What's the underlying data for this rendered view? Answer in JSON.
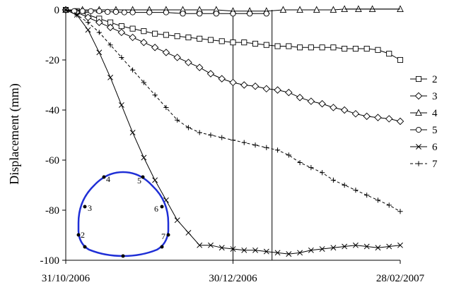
{
  "chart_data": {
    "type": "line",
    "ylabel": "Displacement (mm)",
    "xlabel": "",
    "ylim": [
      -100,
      0
    ],
    "yticks": [
      0,
      -20,
      -40,
      -60,
      -80,
      -100
    ],
    "x_range_days": [
      0,
      120
    ],
    "x_unit": "days since 31/10/2006",
    "xtick_labels": [
      "31/10/2006",
      "30/12/2006",
      "28/02/2007"
    ],
    "grid": false,
    "legend_position": "right",
    "markers": {
      "2": "square",
      "3": "diamond",
      "4": "triangle",
      "5": "circle",
      "6": "x",
      "7": "plus"
    },
    "vertical_lines_days": [
      60,
      74
    ],
    "series": [
      {
        "name": "2",
        "x": [
          0,
          4,
          8,
          12,
          16,
          20,
          24,
          28,
          32,
          36,
          40,
          44,
          48,
          52,
          56,
          60,
          64,
          68,
          72,
          76,
          80,
          84,
          88,
          92,
          96,
          100,
          104,
          108,
          112,
          116,
          120
        ],
        "y": [
          0,
          -0.5,
          -2,
          -3.5,
          -5,
          -6.5,
          -7.5,
          -8.5,
          -9.5,
          -10,
          -10.5,
          -11,
          -11.5,
          -12,
          -12.5,
          -13,
          -13,
          -13.5,
          -14,
          -14.5,
          -14.5,
          -15,
          -15,
          -15,
          -15,
          -15.5,
          -15.5,
          -15.5,
          -16,
          -17.5,
          -20
        ]
      },
      {
        "name": "3",
        "x": [
          0,
          4,
          8,
          12,
          16,
          20,
          24,
          28,
          32,
          36,
          40,
          44,
          48,
          52,
          56,
          60,
          64,
          68,
          72,
          76,
          80,
          84,
          88,
          92,
          96,
          100,
          104,
          108,
          112,
          116,
          120
        ],
        "y": [
          0,
          -1,
          -3,
          -5,
          -7,
          -9,
          -11,
          -13,
          -15,
          -17,
          -19,
          -21,
          -23,
          -25.5,
          -27.5,
          -29,
          -30,
          -30.5,
          -31.5,
          -32,
          -33,
          -35,
          -36.5,
          -37.5,
          -39,
          -40,
          -41.5,
          -42.5,
          -43,
          -43.5,
          -44.5
        ]
      },
      {
        "name": "4",
        "x": [
          0,
          6,
          12,
          18,
          24,
          30,
          36,
          42,
          48,
          54,
          60,
          66,
          72,
          78,
          84,
          90,
          96,
          100,
          105,
          110,
          120
        ],
        "y": [
          0,
          0,
          0,
          0,
          0,
          0,
          0,
          0,
          0,
          0,
          -0.5,
          -0.5,
          -0.5,
          0,
          0,
          0,
          0,
          0.3,
          0.3,
          0.3,
          0.3
        ]
      },
      {
        "name": "5",
        "x": [
          0,
          3,
          6,
          9,
          12,
          15,
          18,
          21,
          24,
          30,
          36,
          42,
          48,
          54,
          60,
          66,
          72
        ],
        "y": [
          0,
          -0.5,
          -0.5,
          -0.5,
          -0.5,
          -0.8,
          -0.8,
          -1,
          -1,
          -1,
          -1,
          -1.5,
          -1.5,
          -1.5,
          -1.5,
          -1.5,
          -1.5
        ]
      },
      {
        "name": "6",
        "x": [
          0,
          4,
          8,
          12,
          16,
          20,
          24,
          28,
          32,
          36,
          40,
          44,
          48,
          52,
          56,
          60,
          64,
          68,
          72,
          76,
          80,
          84,
          88,
          92,
          96,
          100,
          104,
          108,
          112,
          116,
          120
        ],
        "y": [
          0,
          -2,
          -8,
          -17,
          -27,
          -38,
          -49,
          -59,
          -68,
          -76,
          -84,
          -89,
          -94,
          -94,
          -95,
          -95.5,
          -96,
          -96,
          -96.5,
          -97,
          -97.5,
          -97,
          -96,
          -95.5,
          -95,
          -94.5,
          -94,
          -94.5,
          -95,
          -94.5,
          -94
        ]
      },
      {
        "name": "7",
        "x": [
          0,
          4,
          8,
          12,
          16,
          20,
          24,
          28,
          32,
          36,
          40,
          44,
          48,
          52,
          56,
          60,
          64,
          68,
          72,
          76,
          80,
          84,
          88,
          92,
          96,
          100,
          104,
          108,
          112,
          116,
          120
        ],
        "y": [
          0,
          -2,
          -5,
          -9,
          -14,
          -19,
          -24,
          -29,
          -34,
          -39,
          -44,
          -47,
          -49,
          -50,
          -51,
          -52,
          -53,
          -54,
          -55,
          -56,
          -58,
          -61,
          -63,
          -65,
          -68,
          -70,
          -72,
          -74,
          -76,
          -78,
          -80.5
        ]
      }
    ],
    "inset": {
      "shape": "tunnel cross-section",
      "outline_color": "#1f2fd6",
      "point_labels": [
        "2",
        "3",
        "4",
        "5",
        "6",
        "7"
      ]
    }
  }
}
